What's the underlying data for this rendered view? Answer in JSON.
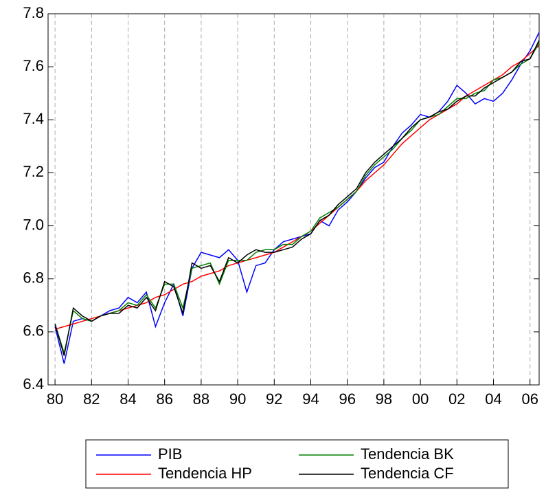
{
  "chart_data": {
    "type": "line",
    "x": [
      1980.0,
      1980.5,
      1981.0,
      1981.5,
      1982.0,
      1982.5,
      1983.0,
      1983.5,
      1984.0,
      1984.5,
      1985.0,
      1985.5,
      1986.0,
      1986.5,
      1987.0,
      1987.5,
      1988.0,
      1988.5,
      1989.0,
      1989.5,
      1990.0,
      1990.5,
      1991.0,
      1991.5,
      1992.0,
      1992.5,
      1993.0,
      1993.5,
      1994.0,
      1994.5,
      1995.0,
      1995.5,
      1996.0,
      1996.5,
      1997.0,
      1997.5,
      1998.0,
      1998.5,
      1999.0,
      1999.5,
      2000.0,
      2000.5,
      2001.0,
      2001.5,
      2002.0,
      2002.5,
      2003.0,
      2003.5,
      2004.0,
      2004.5,
      2005.0,
      2005.5,
      2006.0,
      2006.5
    ],
    "series": [
      {
        "name": "PIB",
        "color": "#0000ff",
        "values": [
          6.62,
          6.48,
          6.64,
          6.65,
          6.64,
          6.66,
          6.68,
          6.69,
          6.73,
          6.71,
          6.75,
          6.62,
          6.71,
          6.78,
          6.66,
          6.84,
          6.9,
          6.89,
          6.88,
          6.91,
          6.87,
          6.75,
          6.85,
          6.86,
          6.91,
          6.94,
          6.95,
          6.96,
          6.97,
          7.02,
          7.0,
          7.06,
          7.09,
          7.13,
          7.18,
          7.22,
          7.24,
          7.3,
          7.35,
          7.38,
          7.42,
          7.41,
          7.43,
          7.47,
          7.53,
          7.5,
          7.46,
          7.48,
          7.47,
          7.5,
          7.55,
          7.61,
          7.66,
          7.73
        ]
      },
      {
        "name": "Tendencia HP",
        "color": "#ff0000",
        "values": [
          6.61,
          6.62,
          6.63,
          6.64,
          6.65,
          6.66,
          6.67,
          6.68,
          6.69,
          6.7,
          6.71,
          6.73,
          6.74,
          6.76,
          6.78,
          6.79,
          6.81,
          6.82,
          6.83,
          6.85,
          6.86,
          6.87,
          6.88,
          6.89,
          6.9,
          6.92,
          6.94,
          6.96,
          6.98,
          7.01,
          7.04,
          7.07,
          7.1,
          7.13,
          7.17,
          7.2,
          7.23,
          7.27,
          7.31,
          7.34,
          7.37,
          7.4,
          7.42,
          7.44,
          7.46,
          7.49,
          7.51,
          7.53,
          7.55,
          7.57,
          7.6,
          7.62,
          7.65,
          7.68
        ]
      },
      {
        "name": "Tendencia BK",
        "color": "#008000",
        "values": [
          6.63,
          6.52,
          6.68,
          6.65,
          6.64,
          6.66,
          6.67,
          6.68,
          6.71,
          6.7,
          6.74,
          6.69,
          6.78,
          6.78,
          6.69,
          6.84,
          6.85,
          6.86,
          6.78,
          6.87,
          6.87,
          6.87,
          6.9,
          6.91,
          6.91,
          6.93,
          6.93,
          6.96,
          6.98,
          7.03,
          7.05,
          7.07,
          7.1,
          7.13,
          7.19,
          7.23,
          7.26,
          7.29,
          7.33,
          7.36,
          7.4,
          7.41,
          7.42,
          7.45,
          7.48,
          7.48,
          7.5,
          7.51,
          7.55,
          7.56,
          7.58,
          7.61,
          7.63,
          7.69
        ]
      },
      {
        "name": "Tendencia CF",
        "color": "#000000",
        "values": [
          6.63,
          6.51,
          6.69,
          6.66,
          6.64,
          6.66,
          6.67,
          6.67,
          6.7,
          6.69,
          6.73,
          6.68,
          6.79,
          6.77,
          6.67,
          6.86,
          6.84,
          6.85,
          6.79,
          6.88,
          6.86,
          6.89,
          6.91,
          6.9,
          6.9,
          6.91,
          6.92,
          6.95,
          6.97,
          7.02,
          7.04,
          7.08,
          7.11,
          7.14,
          7.2,
          7.24,
          7.27,
          7.3,
          7.33,
          7.37,
          7.4,
          7.41,
          7.43,
          7.44,
          7.47,
          7.49,
          7.49,
          7.52,
          7.54,
          7.56,
          7.58,
          7.62,
          7.63,
          7.7
        ]
      }
    ],
    "xlim": [
      1979.62,
      2006.5
    ],
    "xticks": [
      {
        "value": 1980,
        "label": "80"
      },
      {
        "value": 1982,
        "label": "82"
      },
      {
        "value": 1984,
        "label": "84"
      },
      {
        "value": 1986,
        "label": "86"
      },
      {
        "value": 1988,
        "label": "88"
      },
      {
        "value": 1990,
        "label": "90"
      },
      {
        "value": 1992,
        "label": "92"
      },
      {
        "value": 1994,
        "label": "94"
      },
      {
        "value": 1996,
        "label": "96"
      },
      {
        "value": 1998,
        "label": "98"
      },
      {
        "value": 2000,
        "label": "00"
      },
      {
        "value": 2002,
        "label": "02"
      },
      {
        "value": 2004,
        "label": "04"
      },
      {
        "value": 2006,
        "label": "06"
      }
    ],
    "ylim": [
      6.4,
      7.8
    ],
    "yticks": [
      6.4,
      6.6,
      6.8,
      {
        "value": 7,
        "label": "7.0"
      },
      7.2,
      7.4,
      7.6,
      7.8
    ],
    "grid": true,
    "legend": "bottom"
  }
}
